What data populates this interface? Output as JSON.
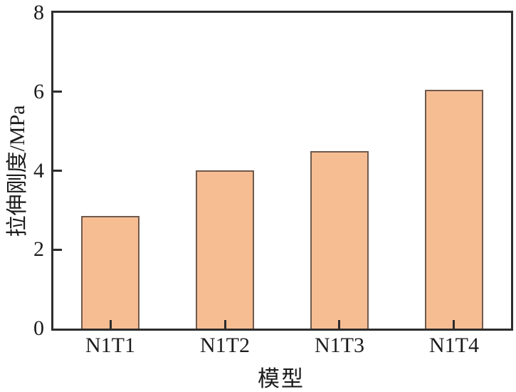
{
  "chart_data": {
    "type": "bar",
    "categories": [
      "N1T1",
      "N1T2",
      "N1T3",
      "N1T4"
    ],
    "values": [
      2.85,
      4.0,
      4.5,
      6.05
    ],
    "title": "",
    "xlabel": "模型",
    "ylabel": "拉伸刚度/MPa",
    "ylim": [
      0,
      8
    ],
    "yticks": [
      0,
      2,
      4,
      6,
      8
    ],
    "yticks_marked": [
      2,
      4,
      6
    ],
    "grid": false,
    "legend": null,
    "colors": {
      "bar_fill": "#F7BD92",
      "bar_edge": "#6F5A4E",
      "axis": "#2D2D2D",
      "text": "#1C1C1C",
      "background": "#FFFFFF"
    }
  }
}
